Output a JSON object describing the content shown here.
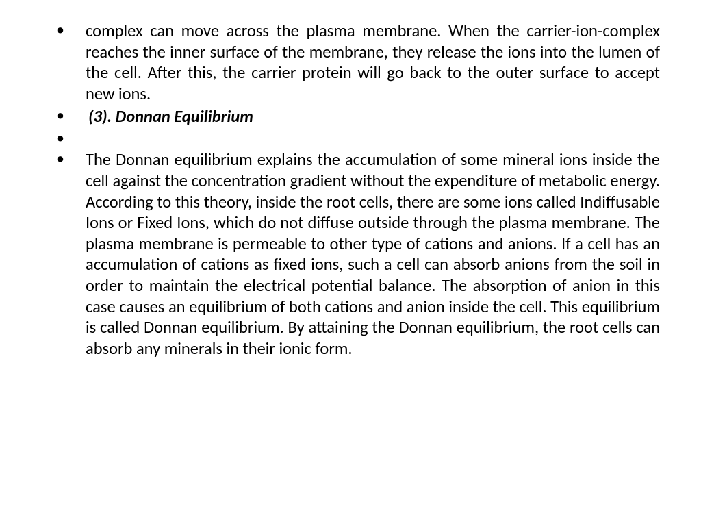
{
  "text_color": "#000000",
  "background_color": "#ffffff",
  "font_family": "Calibri",
  "font_size_pt": 18,
  "bullets": {
    "item1": "complex can move across the plasma membrane. When the carrier-ion-complex reaches the inner surface of the membrane, they release the ions into the lumen of the cell. After this, the carrier protein will go back to the outer surface to accept new ions.",
    "item2": "(3). Donnan Equilibrium",
    "item4": "The Donnan equilibrium explains the accumulation of some mineral ions inside the cell against the concentration gradient without the expenditure of metabolic energy. According to this theory, inside the root cells, there are some ions called Indiffusable Ions or Fixed Ions, which do not diffuse outside through the plasma membrane. The plasma membrane is permeable to other type of cations and anions. If a cell has an accumulation of cations as fixed ions, such a cell can absorb anions from the soil in order to maintain the electrical potential balance. The absorption of anion in this case causes an equilibrium of both cations and anion inside the cell. This equilibrium is called Donnan equilibrium. By attaining the Donnan equilibrium, the root cells can absorb any minerals in their ionic form."
  }
}
